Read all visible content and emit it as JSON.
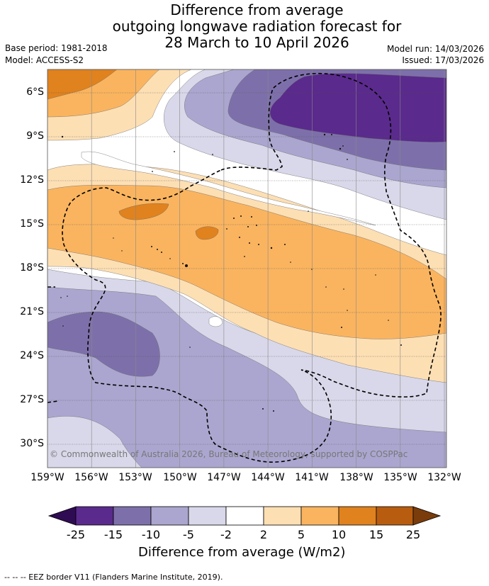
{
  "title": {
    "line1": "Difference from average",
    "line2": "outgoing longwave radiation forecast for",
    "line3": "28 March to 10 April 2026"
  },
  "meta": {
    "base_period": "Base period: 1981-2018",
    "model": "Model: ACCESS-S2",
    "model_run": "Model run: 14/03/2026",
    "issued": "Issued: 17/03/2026"
  },
  "map": {
    "longitude_labels": [
      "159°W",
      "156°W",
      "153°W",
      "150°W",
      "147°W",
      "144°W",
      "141°W",
      "138°W",
      "135°W",
      "132°W"
    ],
    "latitude_labels": [
      "6°S",
      "9°S",
      "12°S",
      "15°S",
      "18°S",
      "21°S",
      "24°S",
      "27°S",
      "30°S"
    ],
    "copyright": "© Commonwealth of Australia 2026, Bureau of Meteorology, supported by COSPPac",
    "eez_legend": "--  --  -- EEZ border V11 (Flanders Marine Institute, 2019)."
  },
  "colorbar": {
    "title": "Difference from average (W/m2)",
    "tick_labels": [
      "-25",
      "-15",
      "-10",
      "-5",
      "-2",
      "2",
      "5",
      "10",
      "15",
      "25"
    ],
    "colors": [
      "#2e0b52",
      "#5a2a8c",
      "#7d70aa",
      "#aba6cf",
      "#d8d8ea",
      "#ffffff",
      "#fddfb4",
      "#fab45f",
      "#e0821e",
      "#b85d0f",
      "#7a3c0a"
    ]
  }
}
